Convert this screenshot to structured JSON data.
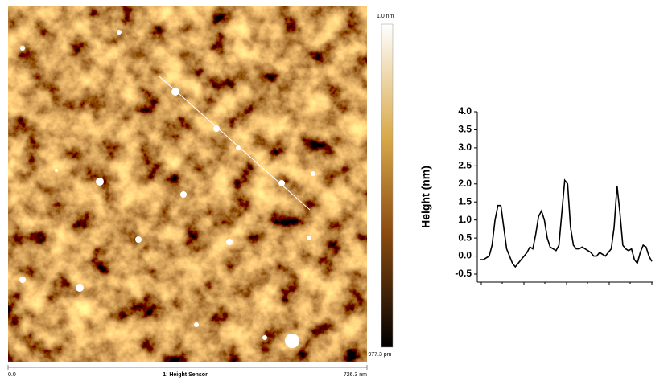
{
  "image": {
    "scale_max": "1.0 nm",
    "scale_min": "-977.3 pm",
    "x_start": "0.0",
    "channel": "1: Height Sensor",
    "x_end": "726.3 nm"
  },
  "chart_data": {
    "type": "line",
    "y_label": "Height (nm)",
    "color": "#000000",
    "values": [
      -0.1,
      -0.1,
      -0.05,
      0.0,
      0.3,
      1.0,
      1.4,
      1.4,
      0.8,
      0.2,
      0.0,
      -0.2,
      -0.3,
      -0.2,
      -0.1,
      0.0,
      0.1,
      0.25,
      0.2,
      0.6,
      1.1,
      1.25,
      1.0,
      0.5,
      0.25,
      0.2,
      0.15,
      0.3,
      1.2,
      2.1,
      2.0,
      0.8,
      0.3,
      0.2,
      0.2,
      0.25,
      0.2,
      0.15,
      0.1,
      0.0,
      0.0,
      0.1,
      0.05,
      0.0,
      0.1,
      0.2,
      0.8,
      1.95,
      1.2,
      0.3,
      0.2,
      0.15,
      0.2,
      -0.1,
      -0.2,
      0.1,
      0.3,
      0.25,
      0.0,
      -0.15
    ],
    "ylim": [
      -0.72,
      4.0
    ],
    "yticks": [
      -0.5,
      {
        "value": 0,
        "label": "0.0"
      },
      0.5,
      {
        "value": 1,
        "label": "1.0"
      },
      1.5,
      {
        "value": 2,
        "label": "2.0"
      },
      2.5,
      {
        "value": 3,
        "label": "3.0"
      },
      3.5,
      {
        "value": 4,
        "label": "4.0"
      }
    ]
  }
}
